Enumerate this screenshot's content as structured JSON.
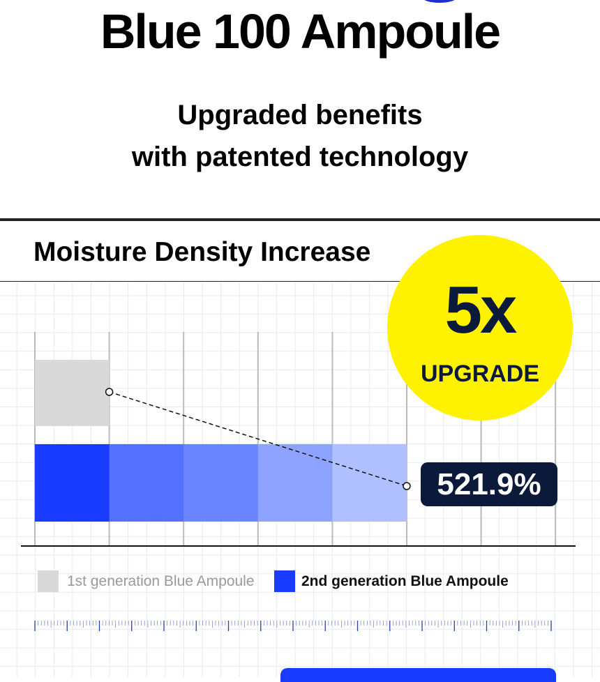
{
  "header": {
    "title": "Blue 100 Ampoule",
    "subtitle_lines": [
      "Upgraded benefits",
      "with patented technology"
    ]
  },
  "section": {
    "title": "Moisture Density Increase"
  },
  "badge": {
    "multiplier": "5x",
    "label": "UPGRADE"
  },
  "colors": {
    "first_gen": "#d9d9d9",
    "second_gen_segments": [
      "#1a3cff",
      "#5470ff",
      "#6b84ff",
      "#8ea2ff",
      "#b0bfff"
    ],
    "badge_bg": "#0b1a3a",
    "highlight": "#fff200"
  },
  "chart_data": {
    "type": "bar",
    "orientation": "horizontal",
    "categories": [
      "1st generation Blue Ampoule",
      "2nd generation Blue Ampoule"
    ],
    "values": [
      100,
      521.9
    ],
    "data_labels": [
      "",
      "521.9%"
    ],
    "legend": [
      "1st generation Blue Ampoule",
      "2nd generation Blue Ampoule"
    ],
    "legend_placement": "bottom",
    "grid": true
  }
}
